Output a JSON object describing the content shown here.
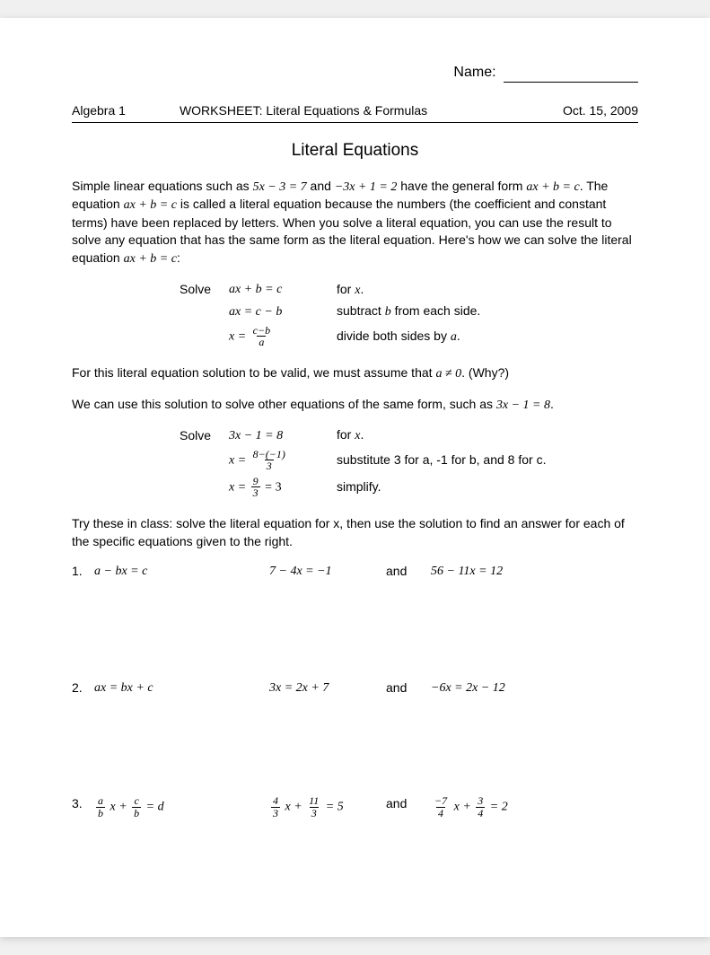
{
  "colors": {
    "page_bg": "#ffffff",
    "body_bg": "#f0f0f0",
    "text": "#000000",
    "rule": "#000000"
  },
  "typography": {
    "body_font": "Arial",
    "math_font": "Cambria Math",
    "body_size_pt": 11,
    "title_size_pt": 14
  },
  "name_label": "Name:",
  "header": {
    "left": "Algebra 1",
    "center": "WORKSHEET: Literal Equations & Formulas",
    "right": "Oct. 15, 2009"
  },
  "title": "Literal Equations",
  "intro_parts": {
    "p1a": "Simple linear equations such as ",
    "p1_eq1": "5x − 3 = 7",
    "p1b": " and ",
    "p1_eq2": "−3x + 1 = 2",
    "p1c": " have the general form ",
    "p1_eq3": "ax + b = c",
    "p1d": ".  The equation ",
    "p1_eq4": "ax + b = c",
    "p1e": " is called a literal equation because the numbers (the coefficient and constant terms) have been replaced by letters.  When you solve a literal equation, you can use the result to solve any equation that has the same form as the literal equation.  Here's how we can solve the literal equation ",
    "p1_eq5": "ax + b = c",
    "p1f": ":"
  },
  "steps1": {
    "solve_label": "Solve",
    "rows": [
      {
        "eq": "ax + b = c",
        "note_a": "for ",
        "note_var": "x",
        "note_b": "."
      },
      {
        "eq": "ax = c − b",
        "note_a": "subtract ",
        "note_var": "b",
        "note_b": " from each side."
      },
      {
        "eq_lhs": "x = ",
        "frac_num": "c−b",
        "frac_den": "a",
        "note_a": "divide both sides by ",
        "note_var": "a",
        "note_b": "."
      }
    ]
  },
  "valid_parts": {
    "a": "For this literal equation solution to be valid, we must assume that ",
    "eq": "a ≠ 0",
    "b": ".  (Why?)"
  },
  "use_parts": {
    "a": "We can use this solution to solve other equations of the same form, such as ",
    "eq": "3x − 1 = 8",
    "b": "."
  },
  "steps2": {
    "solve_label": "Solve",
    "rows": [
      {
        "eq": "3x − 1 = 8",
        "note_a": "for ",
        "note_var": "x",
        "note_b": "."
      },
      {
        "eq_lhs": "x = ",
        "frac_num": "8−(−1)",
        "frac_den": "3",
        "note": "substitute 3 for a, -1 for b, and 8 for c."
      },
      {
        "eq_lhs": "x = ",
        "frac_num": "9",
        "frac_den": "3",
        "eq_rhs": " = 3",
        "note": "simplify."
      }
    ]
  },
  "try_text": "Try these in class:  solve the literal equation for x, then use the solution to find an answer for each of the specific equations given to the right.",
  "problems": [
    {
      "num": "1.",
      "literal": "a − bx = c",
      "eq1": "7 − 4x = −1",
      "and": "and",
      "eq2": "56 − 11x = 12"
    },
    {
      "num": "2.",
      "literal": "ax = bx + c",
      "eq1": "3x = 2x + 7",
      "and": "and",
      "eq2": "−6x = 2x − 12"
    },
    {
      "num": "3.",
      "literal_frac": {
        "a_num": "a",
        "a_den": "b",
        "mid": " x + ",
        "c_num": "c",
        "c_den": "b",
        "eq": " = d"
      },
      "eq1_frac": {
        "a_num": "4",
        "a_den": "3",
        "mid": " x + ",
        "c_num": "11",
        "c_den": "3",
        "eq": " = 5"
      },
      "and": "and",
      "eq2_frac": {
        "a_num": "−7",
        "a_den": "4",
        "mid": " x + ",
        "c_num": "3",
        "c_den": "4",
        "eq": " = 2"
      }
    }
  ]
}
